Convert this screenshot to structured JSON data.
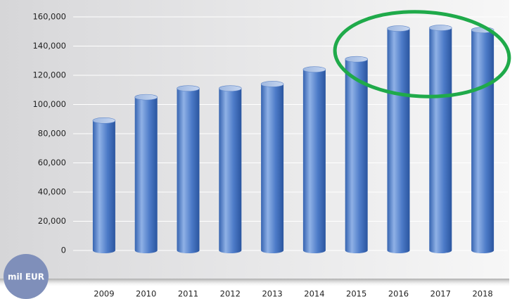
{
  "chart_data": {
    "type": "bar",
    "ylabel": "mil EUR",
    "categories": [
      "2009",
      "2010",
      "2011",
      "2012",
      "2013",
      "2014",
      "2015",
      "2016",
      "2017",
      "2018"
    ],
    "values": [
      89000,
      105000,
      111000,
      111000,
      114000,
      124000,
      131000,
      152000,
      152500,
      151000
    ],
    "color": "#3f6fc0",
    "ylim": [
      0,
      160000
    ],
    "yticks": [
      0,
      {
        "value": 20000,
        "label": "20,000"
      },
      {
        "value": 40000,
        "label": "40,000"
      },
      {
        "value": 60000,
        "label": "60,000"
      },
      {
        "value": 80000,
        "label": "80,000"
      },
      {
        "value": 100000,
        "label": "100,000"
      },
      {
        "value": 120000,
        "label": "120,000"
      },
      {
        "value": 140000,
        "label": "140,000"
      },
      {
        "value": 160000,
        "label": "160,000"
      }
    ],
    "grid": true
  }
}
